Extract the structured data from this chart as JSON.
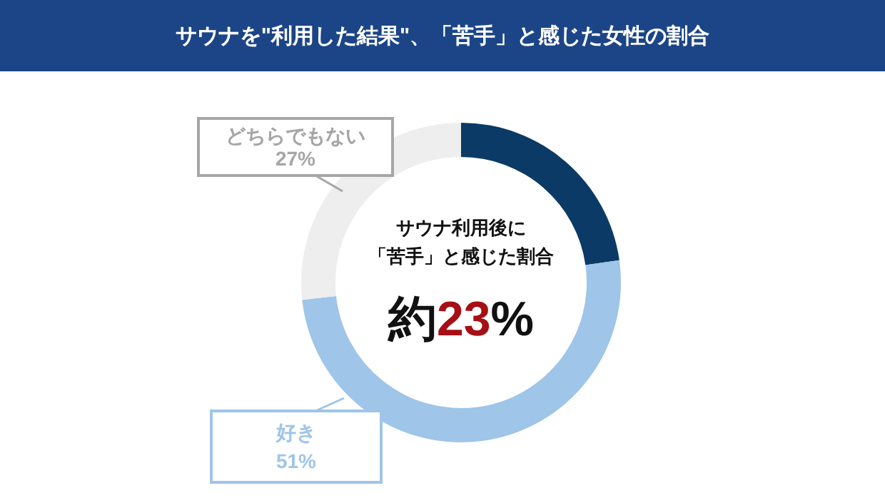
{
  "chart_data": {
    "type": "donut",
    "title": "サウナを\"利用した結果\"、「苦手」と感じた女性の割合",
    "categories": [
      null,
      "好き",
      "どちらでもない"
    ],
    "values": [
      23,
      51,
      27
    ],
    "colors": [
      "#0b3a66",
      "#9fc5e8",
      "#eeeeee"
    ],
    "value_labels": [
      null,
      "51%",
      "27%"
    ],
    "annotations": [
      "サウナ利用後に",
      "「苦手」と感じた割合",
      "約23%"
    ]
  }
}
